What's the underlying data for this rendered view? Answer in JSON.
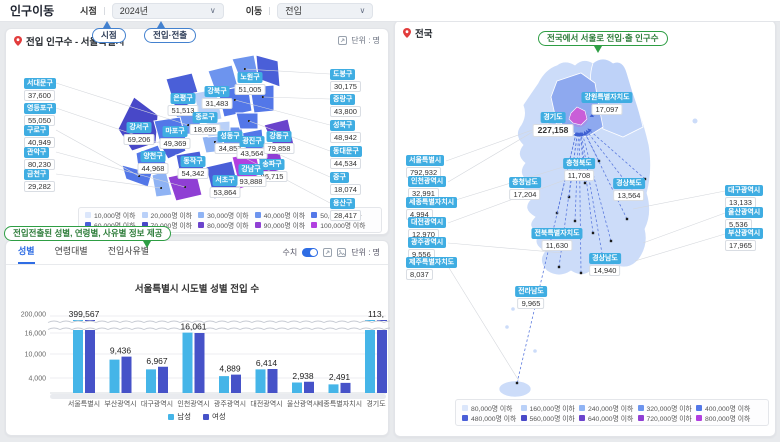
{
  "topbar": {
    "title": "인구이동",
    "filters": [
      {
        "label": "시점",
        "value": "2024년"
      },
      {
        "label": "이동",
        "value": "전입"
      }
    ]
  },
  "callouts": {
    "point_in_time": "시점",
    "in_out": "전입·전출",
    "info": "전입전출된 성별, 연령별, 사유별 정보 제공",
    "nationwide": "전국에서 서울로 전입·출 인구수"
  },
  "seoul_panel": {
    "title": "전입 인구수 - 서울특별시",
    "unit_label": "단위 : 명",
    "left_labels": [
      {
        "name": "서대문구",
        "value": "37,600"
      },
      {
        "name": "영등포구",
        "value": "55,050"
      },
      {
        "name": "구로구",
        "value": "40,949"
      },
      {
        "name": "관악구",
        "value": "80,230"
      },
      {
        "name": "금천구",
        "value": "29,282"
      }
    ],
    "right_labels": [
      {
        "name": "도봉구",
        "value": "30,175"
      },
      {
        "name": "중랑구",
        "value": "43,800"
      },
      {
        "name": "성북구",
        "value": "48,942"
      },
      {
        "name": "동대문구",
        "value": "44,534"
      },
      {
        "name": "중구",
        "value": "18,074"
      },
      {
        "name": "용산구",
        "value": "28,417"
      }
    ],
    "map_labels": [
      {
        "name": "은평구",
        "value": "51,513"
      },
      {
        "name": "노원구",
        "value": "51,005"
      },
      {
        "name": "강북구",
        "value": "31,483"
      },
      {
        "name": "종로구",
        "value": "18,695"
      },
      {
        "name": "마포구",
        "value": "49,369"
      },
      {
        "name": "강서구",
        "value": "69,206"
      },
      {
        "name": "양천구",
        "value": "44,968"
      },
      {
        "name": "동작구",
        "value": "54,342"
      },
      {
        "name": "성동구",
        "value": "34,857"
      },
      {
        "name": "광진구",
        "value": "43,564"
      },
      {
        "name": "강동구",
        "value": "79,858"
      },
      {
        "name": "송파구",
        "value": "86,715"
      },
      {
        "name": "강남구",
        "value": "93,888"
      },
      {
        "name": "서초구",
        "value": "53,864"
      }
    ],
    "legend": [
      "10,000명 이하",
      "20,000명 이하",
      "30,000명 이하",
      "40,000명 이하",
      "50,000명 이하",
      "60,000명 이하",
      "70,000명 이하",
      "80,000명 이하",
      "90,000명 이하",
      "100,000명 이하"
    ],
    "legend_colors": [
      "#dbe6fb",
      "#b9d0f8",
      "#8fb3f4",
      "#6d94ee",
      "#5377e8",
      "#4a5fd8",
      "#4848c8",
      "#6a43cc",
      "#8f3fd4",
      "#b13fe0"
    ]
  },
  "chart_panel": {
    "tabs": [
      "성별",
      "연령대별",
      "전입사유별"
    ],
    "active_tab": "성별",
    "toolbar": {
      "numeric_label": "수치",
      "unit_label": "단위 : 명"
    },
    "title": "서울특별시 시도별 성별 전입 수"
  },
  "chart_data": {
    "type": "grouped-bar",
    "title": "서울특별시 시도별 성별 전입 수",
    "categories": [
      "서울특별시",
      "부산광역시",
      "대구광역시",
      "인천광역시",
      "광주광역시",
      "대전광역시",
      "울산광역시",
      "세종특별자치시",
      "경기도"
    ],
    "series": [
      {
        "name": "남성",
        "color": "#45b5e8",
        "values": [
          196000,
          8900,
          6300,
          16100,
          4500,
          6300,
          2800,
          2300,
          113000
        ]
      },
      {
        "name": "여성",
        "color": "#4652c8",
        "values": [
          203567,
          9700,
          7000,
          16000,
          4900,
          6400,
          3000,
          2700,
          113000
        ]
      }
    ],
    "data_labels": [
      "399,567",
      "9,436",
      "6,967",
      "16,061",
      "4,889",
      "6,414",
      "2,938",
      "2,491",
      "113,"
    ],
    "y_tick_labels": [
      "200,000",
      "16,000",
      "10,000",
      "4,000"
    ],
    "axis_break": true,
    "unit": "명",
    "legend_position": "bottom",
    "grid": true
  },
  "korea_panel": {
    "title": "전국",
    "left_labels": [
      {
        "name": "서울특별시",
        "value": "792,932"
      },
      {
        "name": "인천광역시",
        "value": "32,991"
      },
      {
        "name": "세종특별자치시",
        "value": "4,994"
      },
      {
        "name": "대전광역시",
        "value": "12,970"
      },
      {
        "name": "광주광역시",
        "value": "9,556"
      },
      {
        "name": "제주특별자치도",
        "value": "8,037"
      }
    ],
    "right_labels": [
      {
        "name": "대구광역시",
        "value": "13,133"
      },
      {
        "name": "울산광역시",
        "value": "5,536"
      },
      {
        "name": "부산광역시",
        "value": "17,965"
      }
    ],
    "map_labels": [
      {
        "name": "강원특별자치도",
        "value": "17,097"
      },
      {
        "name": "경기도",
        "value": "227,158"
      },
      {
        "name": "충청북도",
        "value": "11,708"
      },
      {
        "name": "충청남도",
        "value": "17,204"
      },
      {
        "name": "경상북도",
        "value": "13,564"
      },
      {
        "name": "전북특별자치도",
        "value": "11,630"
      },
      {
        "name": "경상남도",
        "value": "14,940"
      },
      {
        "name": "전라남도",
        "value": "9,965"
      }
    ],
    "legend": [
      "80,000명 이하",
      "160,000명 이하",
      "240,000명 이하",
      "320,000명 이하",
      "400,000명 이하",
      "480,000명 이하",
      "560,000명 이하",
      "640,000명 이하",
      "720,000명 이하",
      "800,000명 이하"
    ],
    "legend_colors": [
      "#dbe6fb",
      "#b9d0f8",
      "#8fb3f4",
      "#6d94ee",
      "#5377e8",
      "#4a5fd8",
      "#4848c8",
      "#6a43cc",
      "#8f3fd4",
      "#b13fe0"
    ]
  }
}
